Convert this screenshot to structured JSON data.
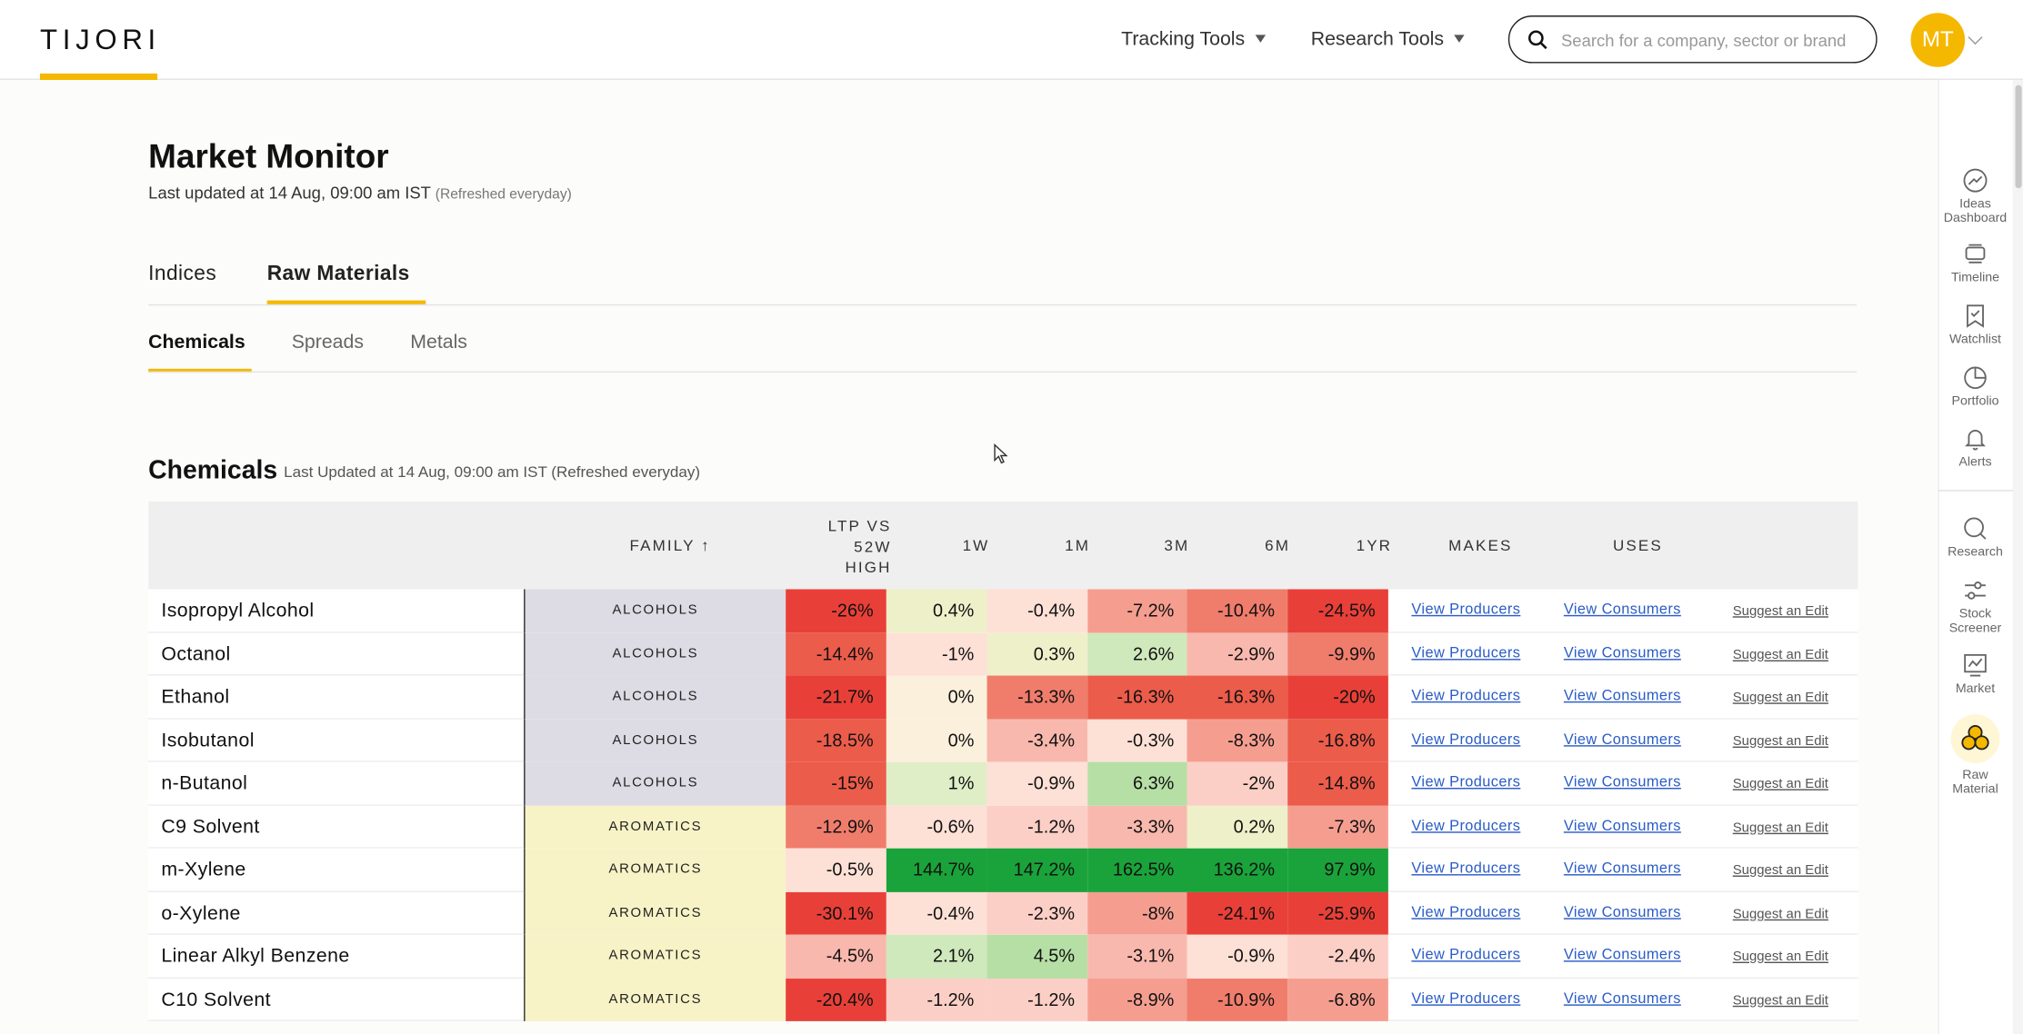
{
  "header": {
    "logo": "TIJORI",
    "menu": [
      {
        "label": "Tracking Tools"
      },
      {
        "label": "Research Tools"
      }
    ],
    "search_placeholder": "Search for a company, sector or brand",
    "avatar": "MT"
  },
  "rail": {
    "items": [
      {
        "label": "Ideas Dashboard",
        "icon": "ideas-dashboard-icon"
      },
      {
        "label": "Timeline",
        "icon": "timeline-icon"
      },
      {
        "label": "Watchlist",
        "icon": "watchlist-icon"
      },
      {
        "label": "Portfolio",
        "icon": "portfolio-icon"
      },
      {
        "label": "Alerts",
        "icon": "bell-icon"
      },
      {
        "label": "Research",
        "icon": "search-icon"
      },
      {
        "label": "Stock Screener",
        "icon": "screener-icon"
      },
      {
        "label": "Market",
        "icon": "market-icon"
      },
      {
        "label": "Raw Material",
        "icon": "raw-material-icon"
      }
    ]
  },
  "page": {
    "title": "Market Monitor",
    "updated": "Last updated at 14 Aug, 09:00 am IST",
    "refresh_note": "(Refreshed everyday)",
    "tabs": [
      "Indices",
      "Raw Materials"
    ],
    "subtabs": [
      "Chemicals",
      "Spreads",
      "Metals"
    ]
  },
  "section": {
    "title": "Chemicals",
    "updated": "Last Updated at 14 Aug, 09:00 am IST (Refreshed everyday)"
  },
  "table": {
    "headers": {
      "family": "FAMILY ↑",
      "ltp": "LTP VS 52W HIGH",
      "w1": "1W",
      "m1": "1M",
      "m3": "3M",
      "m6": "6M",
      "y1": "1YR",
      "makes": "MAKES",
      "uses": "USES"
    },
    "link_producers": "View Producers",
    "link_consumers": "View Consumers",
    "link_suggest": "Suggest an Edit",
    "rows": [
      {
        "name": "Isopropyl Alcohol",
        "family": "ALCOHOLS",
        "ltp": "-26%",
        "w1": "0.4%",
        "m1": "-0.4%",
        "m3": "-7.2%",
        "m6": "-10.4%",
        "y1": "-24.5%"
      },
      {
        "name": "Octanol",
        "family": "ALCOHOLS",
        "ltp": "-14.4%",
        "w1": "-1%",
        "m1": "0.3%",
        "m3": "2.6%",
        "m6": "-2.9%",
        "y1": "-9.9%"
      },
      {
        "name": "Ethanol",
        "family": "ALCOHOLS",
        "ltp": "-21.7%",
        "w1": "0%",
        "m1": "-13.3%",
        "m3": "-16.3%",
        "m6": "-16.3%",
        "y1": "-20%"
      },
      {
        "name": "Isobutanol",
        "family": "ALCOHOLS",
        "ltp": "-18.5%",
        "w1": "0%",
        "m1": "-3.4%",
        "m3": "-0.3%",
        "m6": "-8.3%",
        "y1": "-16.8%"
      },
      {
        "name": "n-Butanol",
        "family": "ALCOHOLS",
        "ltp": "-15%",
        "w1": "1%",
        "m1": "-0.9%",
        "m3": "6.3%",
        "m6": "-2%",
        "y1": "-14.8%"
      },
      {
        "name": "C9 Solvent",
        "family": "AROMATICS",
        "ltp": "-12.9%",
        "w1": "-0.6%",
        "m1": "-1.2%",
        "m3": "-3.3%",
        "m6": "0.2%",
        "y1": "-7.3%"
      },
      {
        "name": "m-Xylene",
        "family": "AROMATICS",
        "ltp": "-0.5%",
        "w1": "144.7%",
        "m1": "147.2%",
        "m3": "162.5%",
        "m6": "136.2%",
        "y1": "97.9%"
      },
      {
        "name": "o-Xylene",
        "family": "AROMATICS",
        "ltp": "-30.1%",
        "w1": "-0.4%",
        "m1": "-2.3%",
        "m3": "-8%",
        "m6": "-24.1%",
        "y1": "-25.9%"
      },
      {
        "name": "Linear Alkyl Benzene",
        "family": "AROMATICS",
        "ltp": "-4.5%",
        "w1": "2.1%",
        "m1": "4.5%",
        "m3": "-3.1%",
        "m6": "-0.9%",
        "y1": "-2.4%"
      },
      {
        "name": "C10 Solvent",
        "family": "AROMATICS",
        "ltp": "-20.4%",
        "w1": "-1.2%",
        "m1": "-1.2%",
        "m3": "-8.9%",
        "m6": "-10.9%",
        "y1": "-6.8%"
      }
    ]
  },
  "colors": {
    "accent": "#f5b800",
    "link": "#2a5cc7",
    "family_alcohols": "#dddce4",
    "family_aromatics": "#f7f3c6"
  }
}
